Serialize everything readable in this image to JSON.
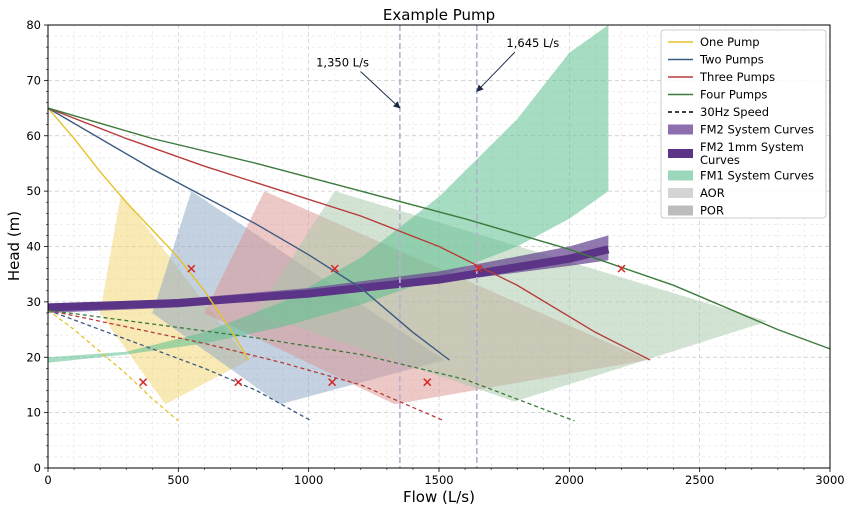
{
  "chart_data": {
    "type": "line",
    "title": "Example Pump",
    "xlabel": "Flow (L/s)",
    "ylabel": "Head (m)",
    "xlim": [
      0,
      3000
    ],
    "ylim": [
      0,
      80
    ],
    "xticks": [
      0,
      500,
      1000,
      1500,
      2000,
      2500,
      3000
    ],
    "yticks": [
      0,
      10,
      20,
      30,
      40,
      50,
      60,
      70,
      80
    ],
    "grid": true,
    "legend_position": "top-right",
    "colors": {
      "one": "#e6c229",
      "two": "#3c5a82",
      "three": "#b83b3b",
      "four": "#3c7a3c",
      "fm2": "#6a4c93",
      "fm2_1mm": "#5b3387",
      "fm1": "#5cbf8f",
      "aor": "#c8c8c8",
      "por": "#a8a8a8",
      "marker": "#d62728",
      "vline": "#b8b0d0"
    },
    "legend": [
      {
        "key": "one",
        "label": "One Pump",
        "kind": "line",
        "color": "#e6c229"
      },
      {
        "key": "two",
        "label": "Two Pumps",
        "kind": "line",
        "color": "#3c5a82"
      },
      {
        "key": "three",
        "label": "Three Pumps",
        "kind": "line",
        "color": "#b83b3b"
      },
      {
        "key": "four",
        "label": "Four Pumps",
        "kind": "line",
        "color": "#3c7a3c"
      },
      {
        "key": "slow",
        "label": "30Hz Speed",
        "kind": "dash",
        "color": "#000000"
      },
      {
        "key": "fm2",
        "label": "FM2 System Curves",
        "kind": "patch",
        "color": "#8d6fb0"
      },
      {
        "key": "fm2_1mm",
        "label": "FM2 1mm System Curves",
        "kind": "thick",
        "color": "#5b3387"
      },
      {
        "key": "fm1",
        "label": "FM1 System Curves",
        "kind": "patch",
        "color": "#9bd8bb"
      },
      {
        "key": "aor",
        "label": "AOR",
        "kind": "patch",
        "color": "#d4d4d4"
      },
      {
        "key": "por",
        "label": "POR",
        "kind": "patch",
        "color": "#bcbcbc"
      }
    ],
    "series": [
      {
        "name": "One Pump",
        "color": "#e6c229",
        "x": [
          0,
          100,
          200,
          300,
          400,
          500,
          600,
          700,
          770
        ],
        "y": [
          65,
          59.5,
          53.5,
          48,
          43,
          38,
          32,
          25,
          19.5
        ]
      },
      {
        "name": "Two Pumps",
        "color": "#3c5a82",
        "x": [
          0,
          200,
          400,
          600,
          800,
          1000,
          1200,
          1400,
          1540
        ],
        "y": [
          65,
          59.5,
          54,
          49,
          44,
          38.5,
          32.5,
          24.5,
          19.5
        ]
      },
      {
        "name": "Three Pumps",
        "color": "#b83b3b",
        "x": [
          0,
          300,
          600,
          900,
          1200,
          1500,
          1800,
          2100,
          2310
        ],
        "y": [
          65,
          59.5,
          54.5,
          50,
          45.5,
          40,
          33,
          24.5,
          19.5
        ]
      },
      {
        "name": "Four Pumps",
        "color": "#3c7a3c",
        "x": [
          0,
          400,
          800,
          1200,
          1600,
          2000,
          2400,
          2800,
          3000
        ],
        "y": [
          65,
          59.5,
          55,
          50,
          45,
          39.5,
          33,
          25,
          21.5
        ]
      },
      {
        "name": "One Pump 30Hz Speed",
        "color": "#e6c229",
        "dashed": true,
        "x": [
          0,
          100,
          200,
          300,
          400,
          500
        ],
        "y": [
          28.5,
          25,
          21,
          17,
          12.5,
          8.5
        ]
      },
      {
        "name": "Two Pumps 30Hz Speed",
        "color": "#3c5a82",
        "dashed": true,
        "x": [
          0,
          200,
          400,
          600,
          800,
          1010
        ],
        "y": [
          28.5,
          25,
          21.5,
          18,
          14,
          8.5
        ]
      },
      {
        "name": "Three Pumps 30Hz Speed",
        "color": "#b83b3b",
        "dashed": true,
        "x": [
          0,
          300,
          600,
          900,
          1200,
          1520
        ],
        "y": [
          28.5,
          25.5,
          22.5,
          19,
          15,
          8.5
        ]
      },
      {
        "name": "Four Pumps 30Hz Speed",
        "color": "#3c7a3c",
        "dashed": true,
        "x": [
          0,
          400,
          800,
          1200,
          1600,
          2020
        ],
        "y": [
          28.5,
          26,
          23.5,
          20.5,
          16,
          8.5
        ]
      }
    ],
    "fm1_band": {
      "upper": {
        "x": [
          0,
          300,
          600,
          900,
          1200,
          1500,
          1800,
          2000,
          2150
        ],
        "y": [
          20,
          21,
          24.5,
          30,
          38,
          49,
          63,
          75,
          80
        ]
      },
      "lower": {
        "x": [
          2150,
          2000,
          1800,
          1500,
          1200,
          900,
          600,
          300,
          0
        ],
        "y": [
          50,
          45,
          40,
          34.5,
          29.5,
          25.5,
          22.5,
          20.5,
          19
        ]
      }
    },
    "fm2_band": {
      "upper": {
        "x": [
          0,
          500,
          1000,
          1500,
          2000,
          2150
        ],
        "y": [
          29.5,
          30.5,
          32.5,
          35.5,
          40,
          42
        ]
      },
      "lower": {
        "x": [
          2150,
          2000,
          1500,
          1000,
          500,
          0
        ],
        "y": [
          37.5,
          36.5,
          33.5,
          31,
          29,
          28
        ]
      }
    },
    "fm2_1mm_line": {
      "x": [
        0,
        500,
        1000,
        1500,
        2000,
        2150
      ],
      "y": [
        29,
        29.8,
        31.5,
        34,
        37.8,
        39.5
      ]
    },
    "operating_regions": [
      {
        "color": "#f1d36b",
        "top": [
          280,
          49.5
        ],
        "upper_end": [
          770,
          19.5
        ],
        "lower_end": [
          450,
          11.5
        ],
        "bottom_start": [
          200,
          28
        ]
      },
      {
        "color": "#8aa3c4",
        "top": [
          550,
          50
        ],
        "upper_end": [
          1520,
          19.5
        ],
        "lower_end": [
          890,
          11.5
        ],
        "bottom_start": [
          400,
          28
        ]
      },
      {
        "color": "#d9918e",
        "top": [
          830,
          50
        ],
        "upper_end": [
          2300,
          19.5
        ],
        "lower_end": [
          1330,
          11.5
        ],
        "bottom_start": [
          600,
          28
        ]
      },
      {
        "color": "#a7c8a7",
        "top": [
          1100,
          50
        ],
        "upper_end": [
          2760,
          26.5
        ],
        "lower_end": [
          1790,
          12
        ],
        "bottom_start": [
          800,
          28
        ]
      }
    ],
    "bep_markers": {
      "x": [
        550,
        1100,
        1650,
        2200,
        365,
        730,
        1090,
        1455
      ],
      "y": [
        36,
        36,
        36,
        36,
        15.5,
        15.5,
        15.5,
        15.5
      ]
    },
    "vertical_lines": [
      1350,
      1645
    ],
    "annotations": [
      {
        "text": "1,350 L/s",
        "x": 1350,
        "y": 65,
        "text_x": 1130,
        "text_y": 72.5
      },
      {
        "text": "1,645 L/s",
        "x": 1645,
        "y": 68,
        "text_x": 1860,
        "text_y": 76
      }
    ]
  }
}
